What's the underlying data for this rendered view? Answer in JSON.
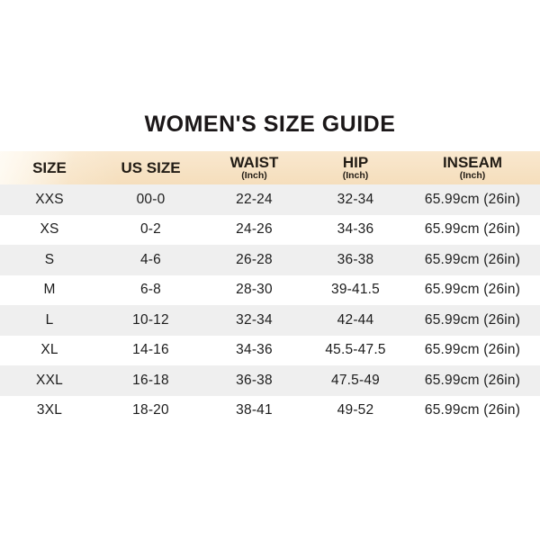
{
  "page": {
    "title": "WOMEN'S SIZE GUIDE"
  },
  "table": {
    "columns": [
      {
        "label": "SIZE",
        "sub": ""
      },
      {
        "label": "US SIZE",
        "sub": ""
      },
      {
        "label": "WAIST",
        "sub": "(Inch)"
      },
      {
        "label": "HIP",
        "sub": "(Inch)"
      },
      {
        "label": "INSEAM",
        "sub": "(Inch)"
      }
    ],
    "rows": [
      {
        "size": "XXS",
        "us_size": "00-0",
        "waist": "22-24",
        "hip": "32-34",
        "inseam": "65.99cm (26in)"
      },
      {
        "size": "XS",
        "us_size": "0-2",
        "waist": "24-26",
        "hip": "34-36",
        "inseam": "65.99cm (26in)"
      },
      {
        "size": "S",
        "us_size": "4-6",
        "waist": "26-28",
        "hip": "36-38",
        "inseam": "65.99cm (26in)"
      },
      {
        "size": "M",
        "us_size": "6-8",
        "waist": "28-30",
        "hip": "39-41.5",
        "inseam": "65.99cm (26in)"
      },
      {
        "size": "L",
        "us_size": "10-12",
        "waist": "32-34",
        "hip": "42-44",
        "inseam": "65.99cm (26in)"
      },
      {
        "size": "XL",
        "us_size": "14-16",
        "waist": "34-36",
        "hip": "45.5-47.5",
        "inseam": "65.99cm (26in)"
      },
      {
        "size": "XXL",
        "us_size": "16-18",
        "waist": "36-38",
        "hip": "47.5-49",
        "inseam": "65.99cm (26in)"
      },
      {
        "size": "3XL",
        "us_size": "18-20",
        "waist": "38-41",
        "hip": "49-52",
        "inseam": "65.99cm (26in)"
      }
    ]
  },
  "colors": {
    "header_bg": "#f7e2c4",
    "row_alt_bg": "#efefef",
    "row_bg": "#ffffff",
    "text": "#1c1c1c",
    "title_text": "#1b1718"
  }
}
